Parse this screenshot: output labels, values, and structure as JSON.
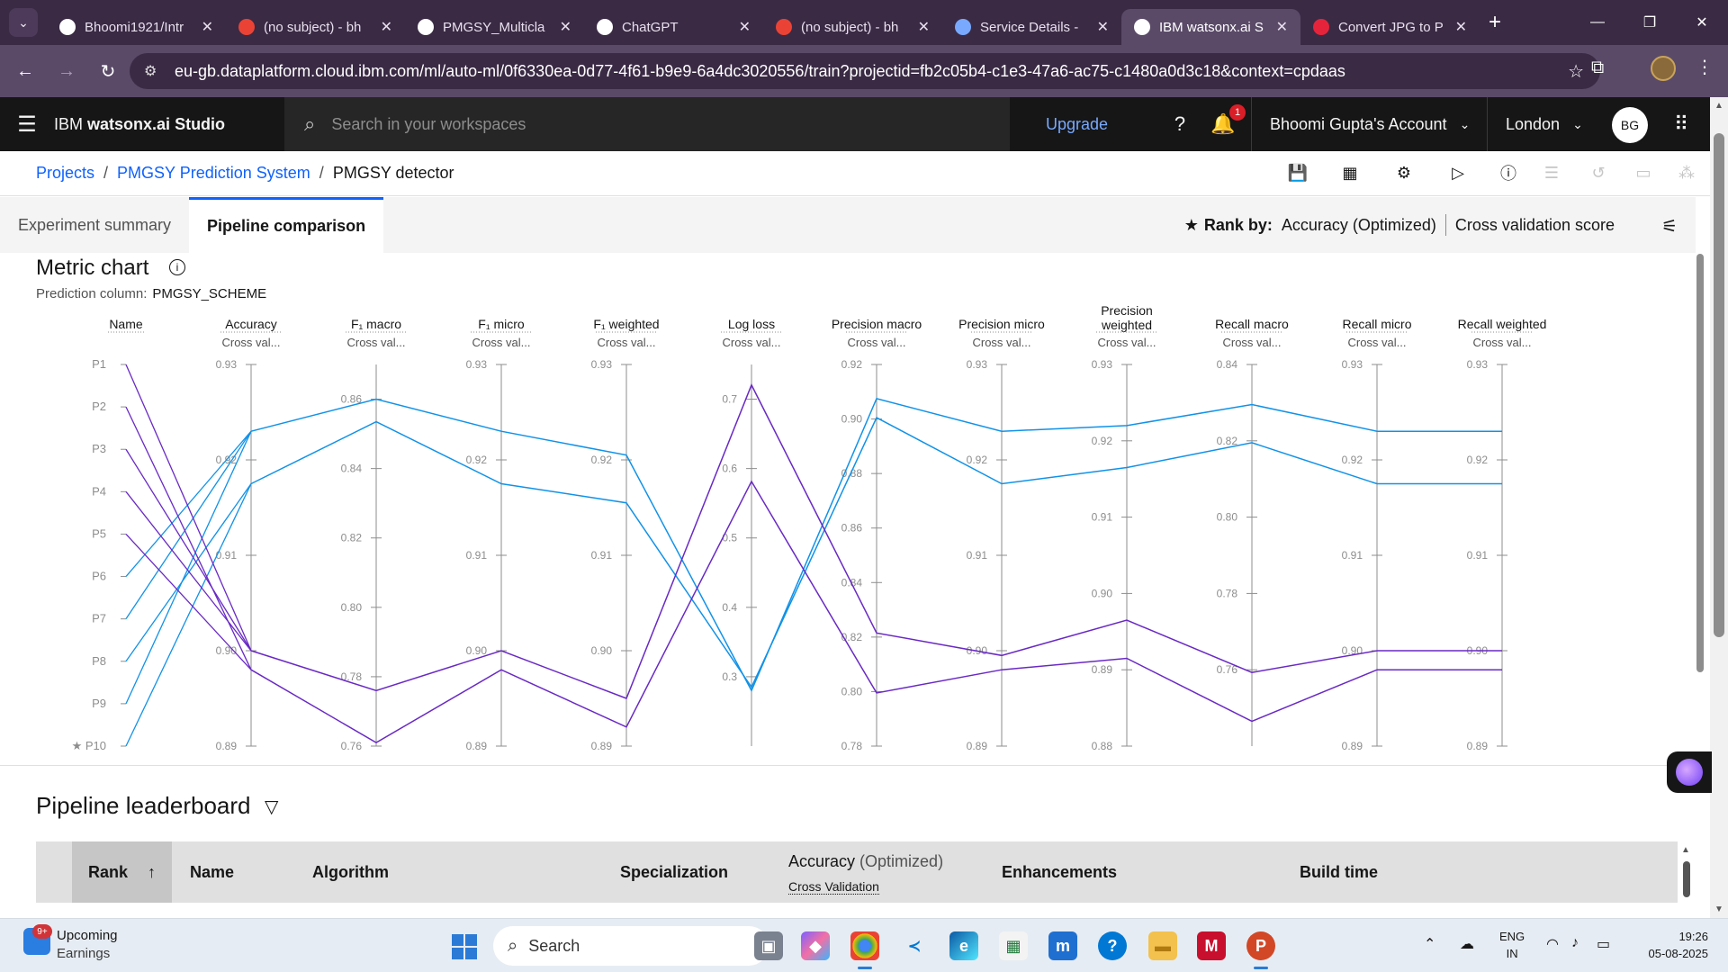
{
  "browser": {
    "tabs": [
      {
        "title": "Bhoomi1921/Intr",
        "icon": "github-icon",
        "color": "#ffffff"
      },
      {
        "title": "(no subject) - bh",
        "icon": "gmail-icon",
        "color": "#ea4335"
      },
      {
        "title": "PMGSY_Multicla",
        "icon": "github-icon",
        "color": "#ffffff"
      },
      {
        "title": "ChatGPT",
        "icon": "chatgpt-icon",
        "color": "#ffffff"
      },
      {
        "title": "(no subject) - bh",
        "icon": "gmail-icon",
        "color": "#ea4335"
      },
      {
        "title": "Service Details -",
        "icon": "cloud-icon",
        "color": "#78a9ff"
      },
      {
        "title": "IBM watsonx.ai S",
        "icon": "watsonx-icon",
        "color": "#ffffff",
        "active": true
      },
      {
        "title": "Convert JPG to P",
        "icon": "heart-icon",
        "color": "#e5243b"
      }
    ],
    "url": "eu-gb.dataplatform.cloud.ibm.com/ml/auto-ml/0f6330ea-0d77-4f61-b9e9-6a4dc3020556/train?projectid=fb2c05b4-c1e3-47a6-ac75-c1480a0d3c18&context=cpdaas"
  },
  "header": {
    "brand_prefix": "IBM",
    "brand_name": "watsonx.ai Studio",
    "search_placeholder": "Search in your workspaces",
    "upgrade": "Upgrade",
    "notification_count": "1",
    "account": "Bhoomi Gupta's Account",
    "region": "London",
    "avatar": "BG"
  },
  "breadcrumb": {
    "projects": "Projects",
    "project": "PMGSY Prediction System",
    "current": "PMGSY detector"
  },
  "tabs": {
    "summary": "Experiment summary",
    "comparison": "Pipeline comparison"
  },
  "rank_by": {
    "label": "Rank by:",
    "metric": "Accuracy (Optimized)",
    "score": "Cross validation score"
  },
  "metric_chart": {
    "title": "Metric chart",
    "prediction_label": "Prediction column:",
    "prediction_value": "PMGSY_SCHEME"
  },
  "chart_data": {
    "type": "parallel_coordinates",
    "pipelines": [
      "P1",
      "P2",
      "P3",
      "P4",
      "P5",
      "P6",
      "P7",
      "P8",
      "P9",
      "P10"
    ],
    "starred": "P10",
    "axes": [
      {
        "name": "Accuracy",
        "sub": "Cross val...",
        "min": 0.89,
        "max": 0.93,
        "ticks": [
          0.93,
          0.92,
          0.91,
          0.9,
          0.89
        ]
      },
      {
        "name": "F₁ macro",
        "sub": "Cross val...",
        "min": 0.76,
        "max": 0.87,
        "ticks": [
          0.86,
          0.84,
          0.82,
          0.8,
          0.78,
          0.76
        ]
      },
      {
        "name": "F₁ micro",
        "sub": "Cross val...",
        "min": 0.89,
        "max": 0.93,
        "ticks": [
          0.93,
          0.92,
          0.91,
          0.9,
          0.89
        ]
      },
      {
        "name": "F₁ weighted",
        "sub": "Cross val...",
        "min": 0.89,
        "max": 0.93,
        "ticks": [
          0.93,
          0.92,
          0.91,
          0.9,
          0.89
        ]
      },
      {
        "name": "Log loss",
        "sub": "Cross val...",
        "min": 0.2,
        "max": 0.75,
        "ticks": [
          0.7,
          0.6,
          0.5,
          0.4,
          0.3
        ]
      },
      {
        "name": "Precision macro",
        "sub": "Cross val...",
        "min": 0.78,
        "max": 0.92,
        "ticks": [
          0.92,
          0.9,
          0.88,
          0.86,
          0.84,
          0.82,
          0.8,
          0.78
        ]
      },
      {
        "name": "Precision micro",
        "sub": "Cross val...",
        "min": 0.89,
        "max": 0.93,
        "ticks": [
          0.93,
          0.92,
          0.91,
          0.9,
          0.89
        ]
      },
      {
        "name": "Precision weighted",
        "sub": "Cross val...",
        "min": 0.88,
        "max": 0.93,
        "ticks": [
          0.93,
          0.92,
          0.91,
          0.9,
          0.89,
          0.88
        ]
      },
      {
        "name": "Recall macro",
        "sub": "Cross val...",
        "min": 0.74,
        "max": 0.84,
        "ticks": [
          0.84,
          0.82,
          0.8,
          0.78,
          0.76
        ]
      },
      {
        "name": "Recall micro",
        "sub": "Cross val...",
        "min": 0.89,
        "max": 0.93,
        "ticks": [
          0.93,
          0.92,
          0.91,
          0.9,
          0.89
        ]
      },
      {
        "name": "Recall weighted",
        "sub": "Cross val...",
        "min": 0.89,
        "max": 0.93,
        "ticks": [
          0.93,
          0.92,
          0.91,
          0.9,
          0.89
        ]
      }
    ],
    "series": [
      {
        "color": "#1192e8",
        "from": [
          "P6",
          "P7",
          "P9"
        ],
        "values": [
          0.923,
          0.86,
          0.923,
          0.9205,
          0.28,
          0.9075,
          0.923,
          0.922,
          0.8295,
          0.923,
          0.923
        ]
      },
      {
        "color": "#1192e8",
        "from": [
          "P8",
          "P10"
        ],
        "values": [
          0.9175,
          0.8535,
          0.9175,
          0.9155,
          0.285,
          0.9005,
          0.9175,
          0.9165,
          0.8195,
          0.9175,
          0.9175
        ]
      },
      {
        "color": "#6929c4",
        "from": [
          "P1",
          "P3",
          "P4"
        ],
        "values": [
          0.9,
          0.776,
          0.9,
          0.895,
          0.7205,
          0.8215,
          0.8995,
          0.8965,
          0.7593,
          0.9,
          0.9
        ]
      },
      {
        "color": "#6929c4",
        "from": [
          "P2",
          "P5"
        ],
        "values": [
          0.898,
          0.761,
          0.898,
          0.892,
          0.5815,
          0.7995,
          0.898,
          0.8915,
          0.7465,
          0.898,
          0.898
        ]
      }
    ]
  },
  "leaderboard": {
    "title": "Pipeline leaderboard",
    "columns": {
      "rank": "Rank",
      "name": "Name",
      "algorithm": "Algorithm",
      "specialization": "Specialization",
      "accuracy": "Accuracy",
      "accuracy_opt": "(Optimized)",
      "accuracy_sub": "Cross Validation",
      "enhancements": "Enhancements",
      "build_time": "Build time"
    }
  },
  "taskbar": {
    "weather_badge": "9+",
    "weather_title": "Upcoming",
    "weather_sub": "Earnings",
    "search": "Search",
    "lang1": "ENG",
    "lang2": "IN",
    "time": "19:26",
    "date": "05-08-2025"
  }
}
